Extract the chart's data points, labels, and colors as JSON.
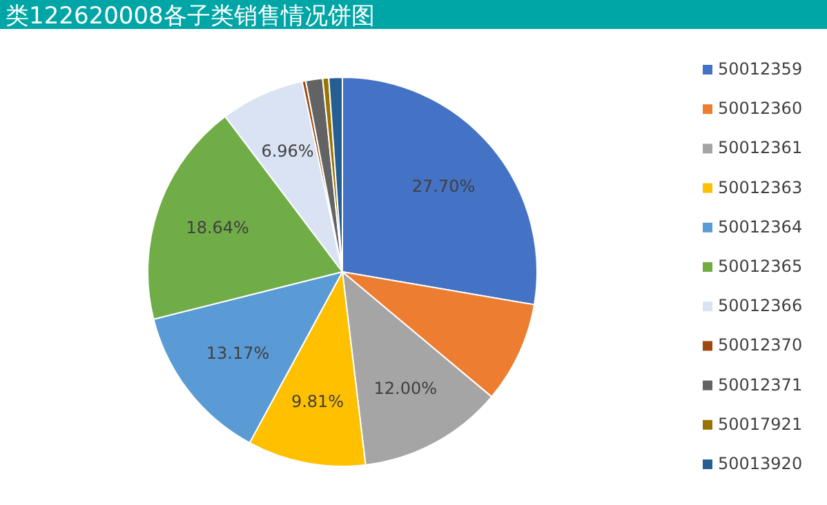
{
  "chart_data": {
    "type": "pie",
    "title": "类122620008各子类销售情况饼图",
    "categories": [
      "50012359",
      "50012360",
      "50012361",
      "50012363",
      "50012364",
      "50012365",
      "50012366",
      "50012370",
      "50012371",
      "50017921",
      "50013920"
    ],
    "values": [
      27.7,
      8.4,
      12.0,
      9.81,
      13.17,
      18.64,
      6.96,
      0.3,
      1.4,
      0.5,
      1.12
    ],
    "value_labels": [
      "27.70%",
      null,
      "12.00%",
      "9.81%",
      "13.17%",
      "18.64%",
      "6.96%",
      null,
      null,
      null,
      null
    ],
    "colors": [
      "#4472c4",
      "#ed7d31",
      "#a5a5a5",
      "#ffc000",
      "#5b9bd5",
      "#70ad47",
      "#dae3f3",
      "#9e480e",
      "#636363",
      "#997300",
      "#255e91"
    ],
    "legend": "right"
  }
}
